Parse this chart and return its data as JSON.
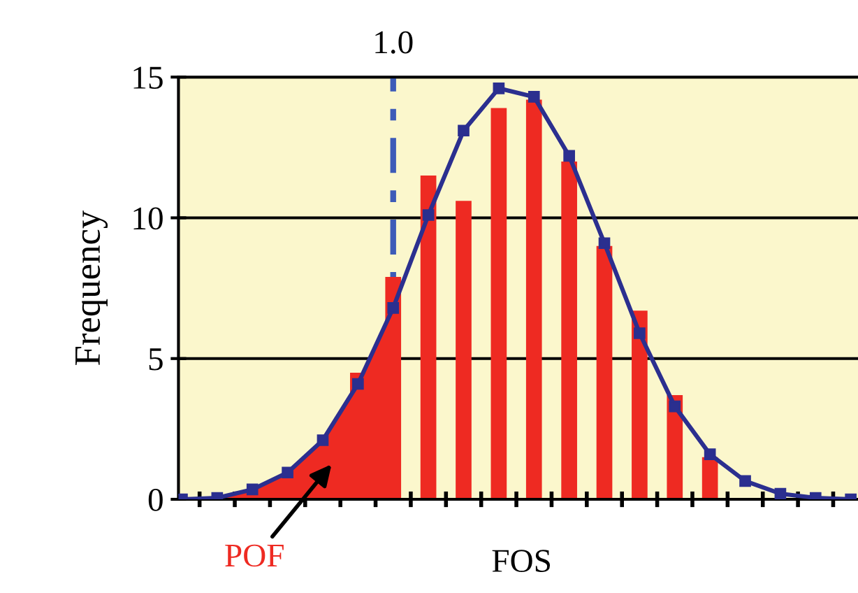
{
  "chart_data": {
    "type": "bar",
    "xlabel": "FOS",
    "ylabel": "Frequency",
    "categories": [
      null,
      null,
      null,
      null,
      null,
      null,
      null,
      null,
      null,
      null,
      null,
      null,
      null,
      null,
      null,
      null,
      null,
      null,
      null,
      null
    ],
    "series": [
      {
        "color": "#ee2a22",
        "values": [
          null,
          null,
          null,
          null,
          null,
          4.5,
          7.9,
          11.5,
          10.6,
          13.9,
          14.2,
          12.0,
          9.0,
          6.7,
          3.7,
          1.5,
          null,
          null,
          null,
          null
        ]
      },
      {
        "type": "area",
        "color": "#ee2a22",
        "values": [
          0,
          0.05,
          0.35,
          0.95,
          2.1,
          4.1,
          6.8,
          null,
          null,
          null,
          null,
          null,
          null,
          null,
          null,
          null,
          null,
          null,
          null,
          null
        ]
      },
      {
        "type": "line",
        "color": "#2b2f8f",
        "marker": "square",
        "line_style": "solid",
        "values": [
          0,
          0.05,
          0.35,
          0.95,
          2.1,
          4.1,
          6.8,
          10.1,
          13.1,
          14.6,
          14.3,
          12.2,
          9.1,
          5.9,
          3.3,
          1.6,
          0.65,
          0.2,
          0.05,
          0
        ]
      }
    ],
    "annotations": [
      "1.0",
      "POF"
    ],
    "ylim": [
      0,
      15
    ],
    "yticks": [
      0,
      5,
      10,
      15
    ],
    "grid": "y",
    "tick_labels": "y",
    "legend": false
  }
}
